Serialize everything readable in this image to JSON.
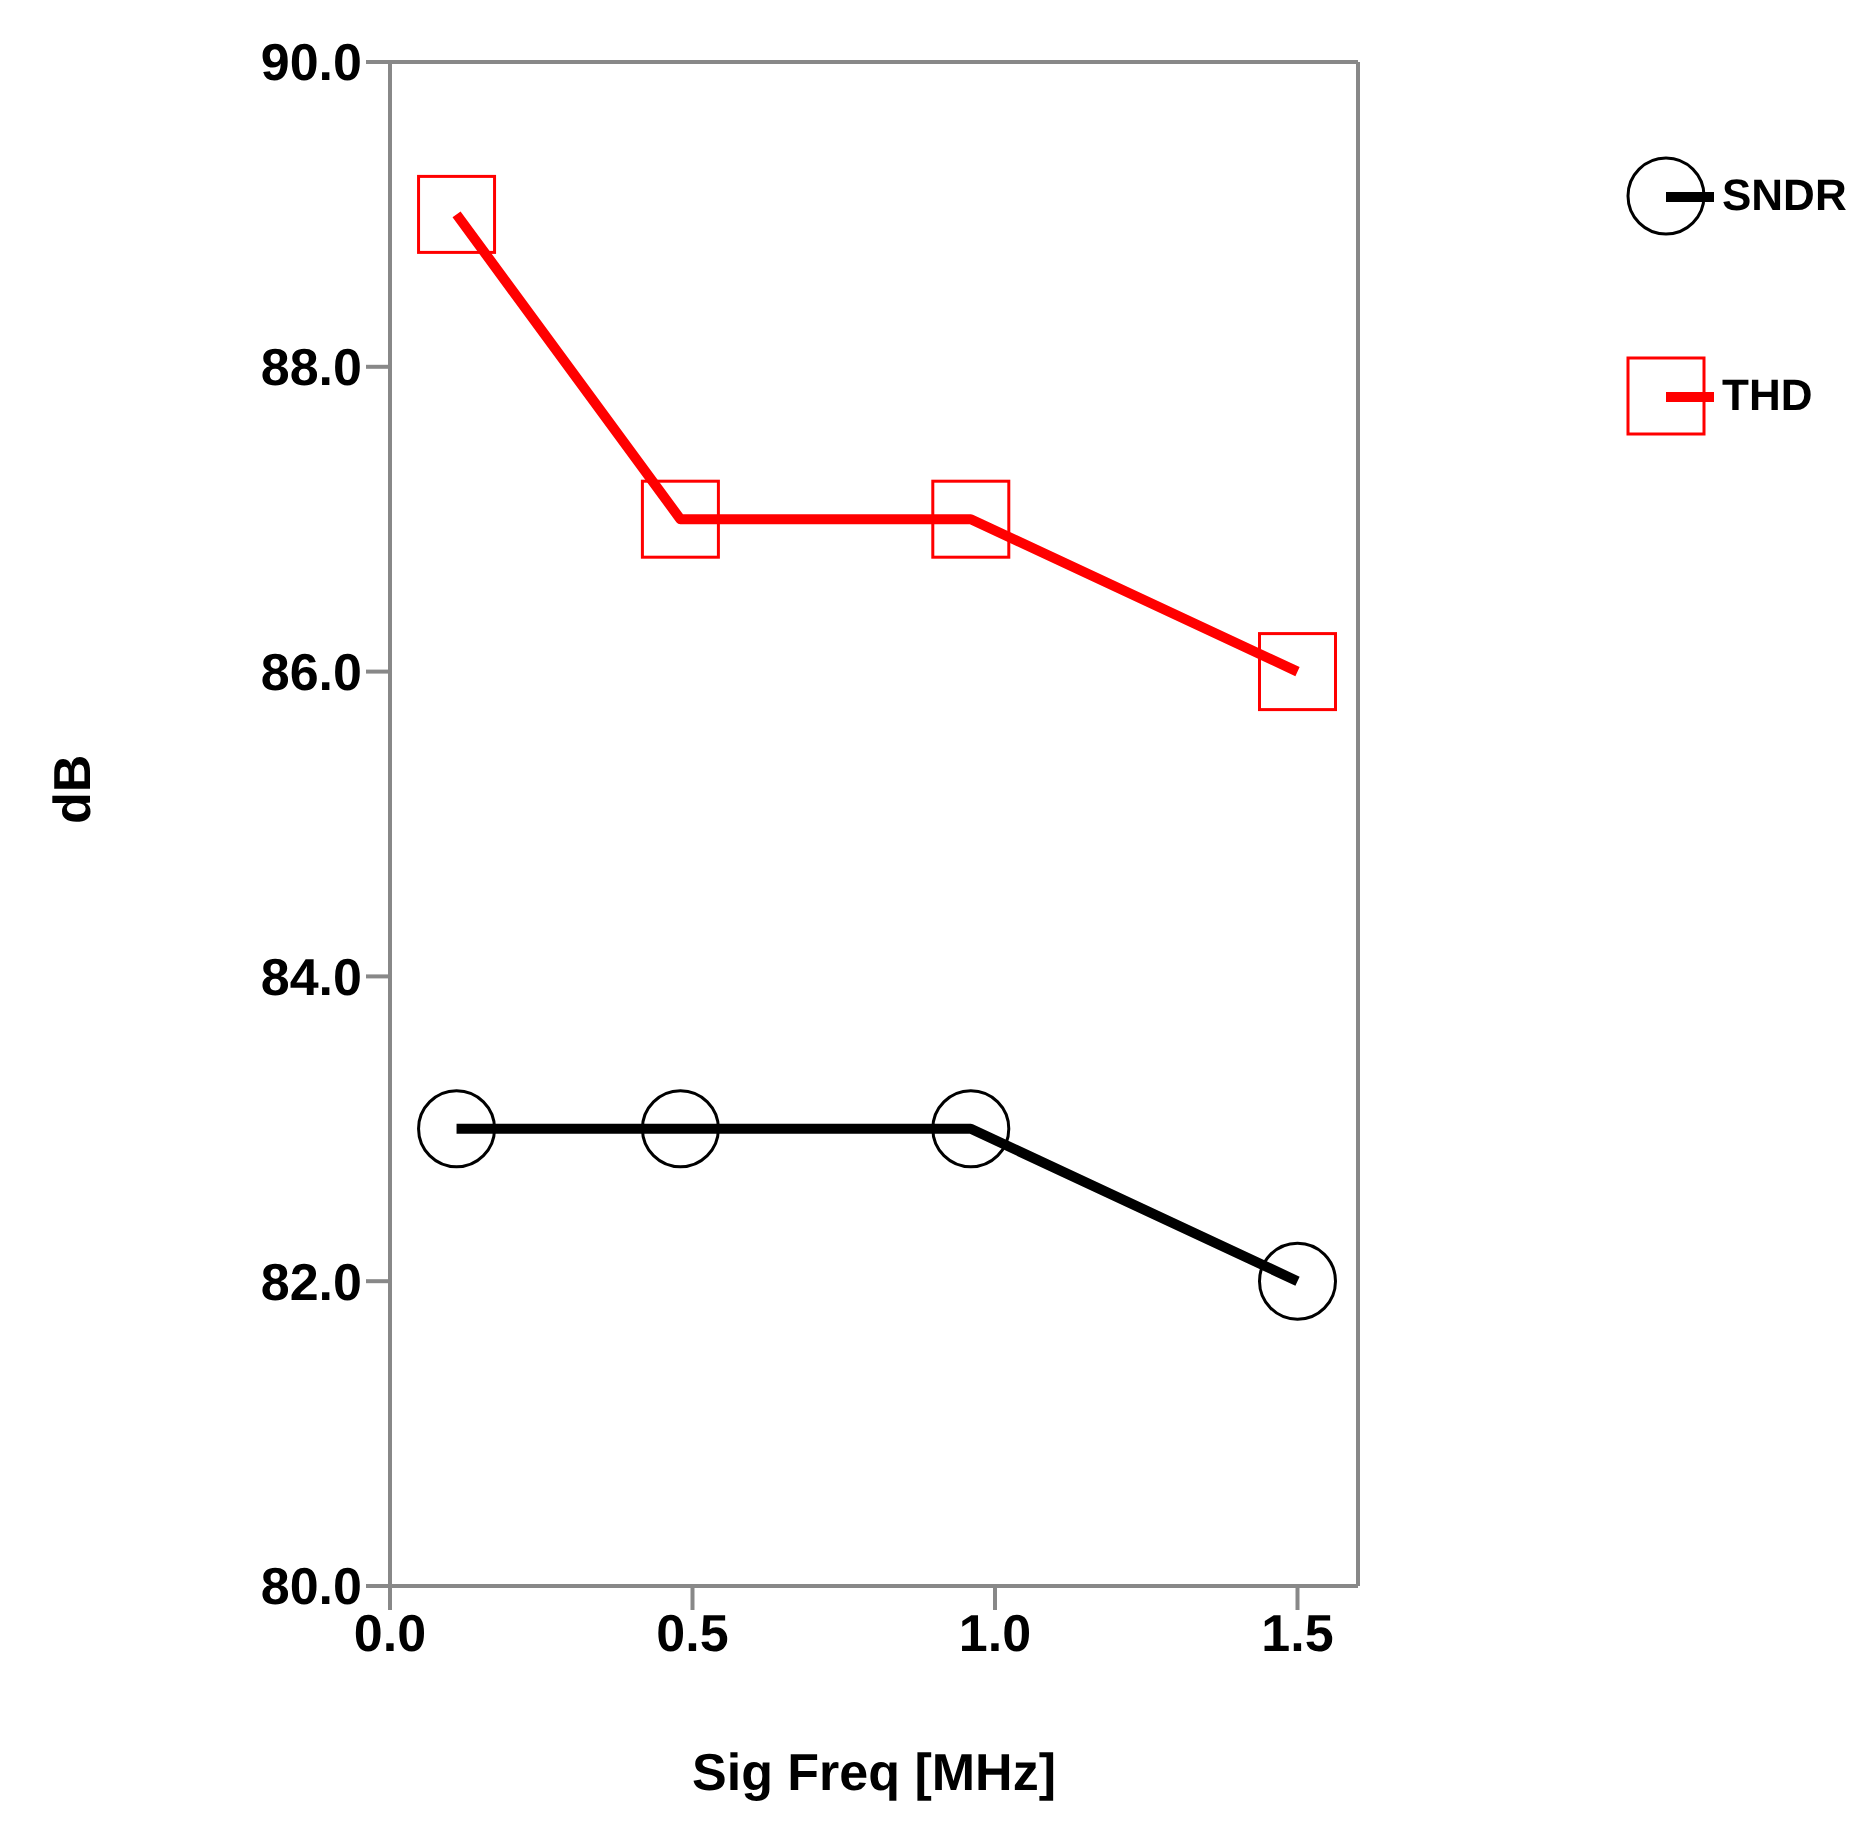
{
  "chart_data": {
    "type": "line",
    "xlabel": "Sig Freq [MHz]",
    "ylabel": "dB",
    "x": [
      0.11,
      0.48,
      0.96,
      1.5
    ],
    "series": [
      {
        "name": "SNDR",
        "color": "#000000",
        "marker": "circle",
        "values": [
          83,
          83,
          83,
          82
        ]
      },
      {
        "name": "THD",
        "color": "#ff0000",
        "marker": "square",
        "values": [
          89,
          87,
          87,
          86
        ]
      }
    ],
    "xlim": [
      0,
      1.6
    ],
    "xticks": [
      {
        "value": 0,
        "label": "0.0"
      },
      {
        "value": 0.5,
        "label": "0.5"
      },
      {
        "value": 1,
        "label": "1.0"
      },
      {
        "value": 1.5,
        "label": "1.5"
      }
    ],
    "ylim": [
      80,
      90
    ],
    "yticks": [
      {
        "value": 80,
        "label": "80.0"
      },
      {
        "value": 82,
        "label": "82.0"
      },
      {
        "value": 84,
        "label": "84.0"
      },
      {
        "value": 86,
        "label": "86.0"
      },
      {
        "value": 88,
        "label": "88.0"
      },
      {
        "value": 90,
        "label": "90.0"
      }
    ],
    "grid": false,
    "legend": "top right",
    "line_style": "solid"
  }
}
